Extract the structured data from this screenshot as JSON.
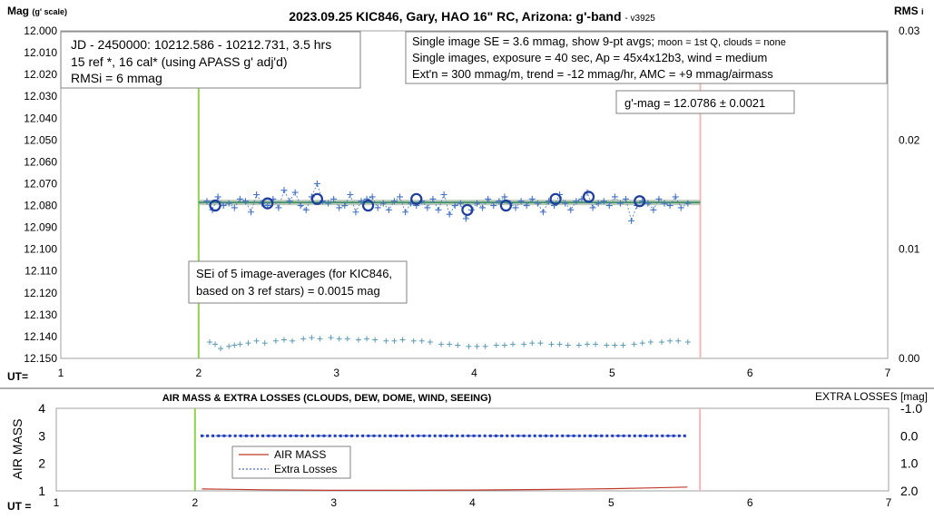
{
  "top_chart": {
    "title": "2023.09.25 KIC846, Gary, HAO 16\" RC, Arizona: g'-band",
    "version": "- v3925",
    "y_label_main": "Mag",
    "y_label_sub": "(g' scale)",
    "y2_label_main": "RMS",
    "y2_label_sub": "i",
    "x_label": "UT=",
    "box_left_lines": [
      "JD - 2450000: 10212.586 - 10212.731, 3.5 hrs",
      "15 ref *, 16 cal* (using APASS g' adj'd)",
      "RMSi = 6 mmag"
    ],
    "box_right_line1_main": "Single image SE = 3.6 mmag, show  9-pt avgs;",
    "box_right_line1_small": "moon = 1st Q, clouds = none",
    "box_right_lines": [
      "Single images, exposure = 40 sec, Ap = 45x4x12b3, wind = medium",
      "Ext'n = 300 mmag/m, trend = -12 mmag/hr, AMC = +9 mmag/airmass"
    ],
    "gmag_box": "g'-mag = 12.0786 ± 0.0021",
    "sei_box_lines": [
      "SEi of 5 image-averages (for KIC846,",
      "based on 3 ref stars) = 0.0015 mag"
    ]
  },
  "bottom_chart": {
    "title": "AIR MASS & EXTRA LOSSES (CLOUDS, DEW, DOME, WIND, SEEING)",
    "y_label": "AIR MASS",
    "y2_label": "EXTRA LOSSES [mag]",
    "x_label": "UT =",
    "legend": [
      "AIR MASS",
      "Extra Losses"
    ]
  },
  "colors": {
    "start_line": "#92d050",
    "end_line": "#f4b8b8",
    "points": "#4472c4",
    "avg_circles": "#1f3f9f",
    "fit_band": "#a6b8a6",
    "fit_line": "#2e8b57",
    "rms_points": "#5b9bb5",
    "airmass": "#c0392b",
    "extra_losses": "#1f3fbf"
  },
  "chart_data": [
    {
      "type": "scatter",
      "title": "2023.09.25 KIC846, Gary, HAO 16\" RC, Arizona: g'-band",
      "xlabel": "UT=",
      "ylabel": "Mag (g' scale)",
      "y2label": "RMS i",
      "xlim": [
        1,
        7
      ],
      "ylim": [
        12.0,
        12.15
      ],
      "y_reversed": true,
      "y2lim": [
        0.0,
        0.03
      ],
      "x_ticks": [
        1,
        2,
        3,
        4,
        5,
        6,
        7
      ],
      "y_ticks": [
        12.0,
        12.01,
        12.02,
        12.03,
        12.04,
        12.05,
        12.06,
        12.07,
        12.08,
        12.09,
        12.1,
        12.11,
        12.12,
        12.13,
        12.14,
        12.15
      ],
      "y2_ticks": [
        0.0,
        0.01,
        0.02,
        0.03
      ],
      "start_ut": 2.0,
      "end_ut": 5.64,
      "fit_mag": 12.0786,
      "fit_x_range": [
        2.0,
        5.64
      ],
      "series": [
        {
          "marker": "plus",
          "x": [
            2.06,
            2.1,
            2.14,
            2.18,
            2.22,
            2.26,
            2.3,
            2.34,
            2.38,
            2.42,
            2.46,
            2.5,
            2.54,
            2.58,
            2.62,
            2.66,
            2.7,
            2.74,
            2.78,
            2.82,
            2.86,
            2.9,
            2.94,
            2.98,
            3.02,
            3.06,
            3.1,
            3.14,
            3.18,
            3.22,
            3.26,
            3.3,
            3.34,
            3.38,
            3.42,
            3.46,
            3.5,
            3.54,
            3.58,
            3.62,
            3.66,
            3.7,
            3.74,
            3.78,
            3.82,
            3.86,
            3.9,
            3.94,
            3.98,
            4.02,
            4.06,
            4.1,
            4.14,
            4.18,
            4.22,
            4.26,
            4.3,
            4.34,
            4.38,
            4.42,
            4.46,
            4.5,
            4.54,
            4.58,
            4.62,
            4.66,
            4.7,
            4.74,
            4.78,
            4.82,
            4.86,
            4.9,
            4.94,
            4.98,
            5.02,
            5.06,
            5.1,
            5.14,
            5.18,
            5.22,
            5.26,
            5.3,
            5.34,
            5.38,
            5.42,
            5.46,
            5.5,
            5.55
          ],
          "y": [
            12.078,
            12.082,
            12.076,
            12.08,
            12.079,
            12.081,
            12.077,
            12.078,
            12.083,
            12.075,
            12.079,
            12.08,
            12.077,
            12.081,
            12.073,
            12.078,
            12.074,
            12.08,
            12.082,
            12.076,
            12.07,
            12.078,
            12.079,
            12.077,
            12.081,
            12.08,
            12.075,
            12.083,
            12.078,
            12.077,
            12.076,
            12.081,
            12.079,
            12.082,
            12.078,
            12.076,
            12.083,
            12.079,
            12.08,
            12.078,
            12.081,
            12.077,
            12.082,
            12.075,
            12.084,
            12.08,
            12.079,
            12.086,
            12.082,
            12.079,
            12.081,
            12.077,
            12.08,
            12.078,
            12.076,
            12.079,
            12.081,
            12.078,
            12.08,
            12.077,
            12.079,
            12.083,
            12.078,
            12.08,
            12.075,
            12.079,
            12.082,
            12.078,
            12.077,
            12.074,
            12.081,
            12.079,
            12.078,
            12.08,
            12.076,
            12.079,
            12.077,
            12.087,
            12.08,
            12.078,
            12.079,
            12.082,
            12.077,
            12.079,
            12.08,
            12.076,
            12.081,
            12.079
          ]
        },
        {
          "marker": "circle",
          "x": [
            2.12,
            2.5,
            2.86,
            3.23,
            3.58,
            3.95,
            4.23,
            4.59,
            4.83,
            5.2
          ],
          "y": [
            12.08,
            12.079,
            12.077,
            12.08,
            12.077,
            12.082,
            12.08,
            12.077,
            12.076,
            12.078
          ]
        },
        {
          "marker": "plus",
          "axis": "y2",
          "x": [
            2.08,
            2.12,
            2.16,
            2.22,
            2.26,
            2.3,
            2.36,
            2.42,
            2.48,
            2.56,
            2.62,
            2.68,
            2.76,
            2.82,
            2.88,
            2.96,
            3.02,
            3.08,
            3.16,
            3.22,
            3.28,
            3.36,
            3.42,
            3.48,
            3.56,
            3.62,
            3.68,
            3.76,
            3.82,
            3.88,
            3.96,
            4.02,
            4.08,
            4.16,
            4.22,
            4.28,
            4.36,
            4.42,
            4.48,
            4.56,
            4.62,
            4.68,
            4.76,
            4.82,
            4.88,
            4.96,
            5.02,
            5.08,
            5.16,
            5.22,
            5.28,
            5.36,
            5.42,
            5.48,
            5.55
          ],
          "y": [
            0.0015,
            0.0013,
            0.0009,
            0.0011,
            0.0012,
            0.0013,
            0.0014,
            0.0016,
            0.0014,
            0.0016,
            0.0017,
            0.0016,
            0.0018,
            0.0019,
            0.0018,
            0.0019,
            0.0018,
            0.0018,
            0.0017,
            0.0018,
            0.0017,
            0.0016,
            0.0016,
            0.0017,
            0.0016,
            0.0016,
            0.0015,
            0.0013,
            0.0013,
            0.0012,
            0.0011,
            0.0011,
            0.0011,
            0.0012,
            0.0012,
            0.0013,
            0.0013,
            0.0014,
            0.0014,
            0.0013,
            0.0013,
            0.0012,
            0.0012,
            0.0013,
            0.0013,
            0.0012,
            0.0012,
            0.0012,
            0.0013,
            0.0014,
            0.0015,
            0.0015,
            0.0016,
            0.0016,
            0.0015
          ]
        }
      ]
    },
    {
      "type": "line",
      "title": "AIR MASS & EXTRA LOSSES (CLOUDS, DEW, DOME, WIND, SEEING)",
      "xlabel": "UT =",
      "ylabel": "AIR MASS",
      "y2label": "EXTRA LOSSES [mag]",
      "xlim": [
        1,
        7
      ],
      "ylim": [
        1,
        4
      ],
      "y2lim": [
        2.0,
        -1.0
      ],
      "x_ticks": [
        1,
        2,
        3,
        4,
        5,
        6,
        7
      ],
      "y_ticks": [
        1,
        2,
        3,
        4
      ],
      "y2_ticks": [
        -1.0,
        0.0,
        1.0,
        2.0
      ],
      "y2_tick_labels": [
        "-1.0",
        "0.0",
        "1.0",
        "2.0"
      ],
      "start_ut": 2.0,
      "end_ut": 5.64,
      "series": [
        {
          "name": "AIR MASS",
          "x": [
            2.05,
            2.5,
            3.0,
            3.5,
            4.0,
            4.5,
            5.0,
            5.3,
            5.55
          ],
          "y": [
            1.07,
            1.04,
            1.02,
            1.02,
            1.03,
            1.05,
            1.08,
            1.11,
            1.14
          ]
        },
        {
          "name": "Extra Losses",
          "axis": "y2",
          "x": [
            2.05,
            2.5,
            3.0,
            3.5,
            4.0,
            4.5,
            5.0,
            5.55
          ],
          "y": [
            0.0,
            0.0,
            0.0,
            0.0,
            0.0,
            0.0,
            0.0,
            0.0
          ]
        }
      ]
    }
  ]
}
